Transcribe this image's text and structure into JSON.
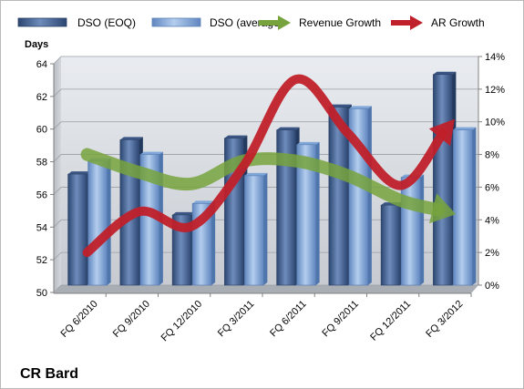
{
  "chart_data": {
    "type": "bar",
    "title": "CR Bard",
    "categories": [
      "FQ 6/2010",
      "FQ 9/2010",
      "FQ 12/2010",
      "FQ 3/2011",
      "FQ 6/2011",
      "FQ 9/2011",
      "FQ 12/2011",
      "FQ 3/2012"
    ],
    "ylabel": "Days",
    "ylim": [
      50,
      64
    ],
    "yticks": [
      "50",
      "52",
      "54",
      "56",
      "58",
      "60",
      "62",
      "64"
    ],
    "y2lim": [
      0,
      14
    ],
    "y2ticks": [
      "0%",
      "2%",
      "4%",
      "6%",
      "8%",
      "10%",
      "12%",
      "14%"
    ],
    "grid": true,
    "legend_position": "top",
    "series": [
      {
        "name": "DSO (EOQ)",
        "kind": "bar",
        "axis": "left",
        "color": "#4f6e9e",
        "values": [
          56.8,
          58.9,
          54.3,
          59.0,
          59.5,
          60.9,
          54.9,
          62.9
        ]
      },
      {
        "name": "DSO (average)",
        "kind": "bar",
        "axis": "left",
        "color": "#8db3e0",
        "values": [
          57.6,
          58.0,
          55.0,
          56.7,
          58.6,
          60.8,
          56.6,
          59.5
        ]
      },
      {
        "name": "Revenue Growth",
        "kind": "arrow-line",
        "axis": "right",
        "color": "#77a33d",
        "values": [
          8.0,
          6.9,
          6.2,
          7.6,
          7.6,
          6.7,
          5.2,
          4.4
        ]
      },
      {
        "name": "AR Growth",
        "kind": "arrow-line",
        "axis": "right",
        "color": "#c0202a",
        "values": [
          2.0,
          4.5,
          3.6,
          7.3,
          12.6,
          9.3,
          6.1,
          10.0
        ]
      }
    ]
  }
}
